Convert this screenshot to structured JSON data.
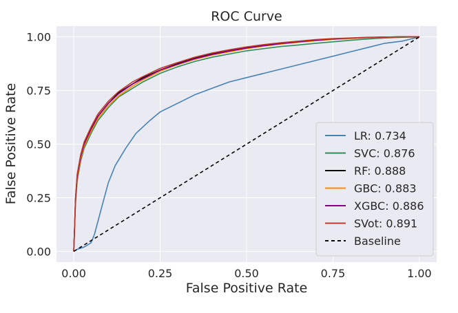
{
  "chart_data": {
    "type": "line",
    "title": "ROC Curve",
    "xlabel": "False Positive Rate",
    "ylabel": "False Positive Rate",
    "xlim": [
      -0.05,
      1.05
    ],
    "ylim": [
      -0.05,
      1.05
    ],
    "xticks": [
      0.0,
      0.25,
      0.5,
      0.75,
      1.0
    ],
    "xtick_labels": [
      "0.00",
      "0.25",
      "0.50",
      "0.75",
      "1.00"
    ],
    "yticks": [
      0.0,
      0.25,
      0.5,
      0.75,
      1.0
    ],
    "ytick_labels": [
      "0.00",
      "0.25",
      "0.50",
      "0.75",
      "1.00"
    ],
    "grid": true,
    "legend_position": "lower-right",
    "series": [
      {
        "name": "LR: 0.734",
        "color": "#4682b4",
        "dash": "solid",
        "x": [
          0,
          0.01,
          0.03,
          0.05,
          0.06,
          0.08,
          0.1,
          0.12,
          0.15,
          0.18,
          0.22,
          0.25,
          0.3,
          0.35,
          0.4,
          0.45,
          0.5,
          0.55,
          0.6,
          0.65,
          0.7,
          0.75,
          0.8,
          0.85,
          0.9,
          0.95,
          1.0
        ],
        "y": [
          0,
          0.01,
          0.02,
          0.04,
          0.08,
          0.2,
          0.32,
          0.4,
          0.48,
          0.55,
          0.61,
          0.65,
          0.69,
          0.73,
          0.76,
          0.79,
          0.81,
          0.83,
          0.85,
          0.87,
          0.89,
          0.91,
          0.93,
          0.95,
          0.97,
          0.98,
          1.0
        ]
      },
      {
        "name": "SVC: 0.876",
        "color": "#2e8b57",
        "dash": "solid",
        "x": [
          0,
          0.005,
          0.01,
          0.02,
          0.03,
          0.05,
          0.07,
          0.1,
          0.13,
          0.17,
          0.2,
          0.25,
          0.3,
          0.35,
          0.4,
          0.45,
          0.5,
          0.55,
          0.6,
          0.65,
          0.7,
          0.75,
          0.8,
          0.85,
          0.9,
          0.95,
          1.0
        ],
        "y": [
          0,
          0.22,
          0.33,
          0.42,
          0.48,
          0.55,
          0.61,
          0.67,
          0.72,
          0.76,
          0.79,
          0.83,
          0.86,
          0.885,
          0.905,
          0.92,
          0.935,
          0.945,
          0.955,
          0.962,
          0.97,
          0.977,
          0.984,
          0.99,
          0.995,
          0.998,
          1.0
        ]
      },
      {
        "name": "RF: 0.888",
        "color": "#000000",
        "dash": "solid",
        "x": [
          0,
          0.005,
          0.01,
          0.02,
          0.03,
          0.05,
          0.07,
          0.1,
          0.13,
          0.17,
          0.2,
          0.25,
          0.3,
          0.35,
          0.4,
          0.45,
          0.5,
          0.55,
          0.6,
          0.65,
          0.7,
          0.75,
          0.8,
          0.85,
          0.9,
          0.95,
          1.0
        ],
        "y": [
          0,
          0.24,
          0.35,
          0.44,
          0.5,
          0.57,
          0.63,
          0.69,
          0.74,
          0.78,
          0.81,
          0.845,
          0.875,
          0.9,
          0.92,
          0.935,
          0.95,
          0.96,
          0.97,
          0.977,
          0.984,
          0.99,
          0.994,
          0.997,
          0.999,
          1.0,
          1.0
        ]
      },
      {
        "name": "GBC: 0.883",
        "color": "#ff8c00",
        "dash": "solid",
        "x": [
          0,
          0.005,
          0.01,
          0.02,
          0.03,
          0.05,
          0.07,
          0.1,
          0.13,
          0.17,
          0.2,
          0.25,
          0.3,
          0.35,
          0.4,
          0.45,
          0.5,
          0.55,
          0.6,
          0.65,
          0.7,
          0.75,
          0.8,
          0.85,
          0.9,
          0.95,
          1.0
        ],
        "y": [
          0,
          0.23,
          0.34,
          0.43,
          0.49,
          0.56,
          0.62,
          0.68,
          0.725,
          0.77,
          0.8,
          0.84,
          0.87,
          0.895,
          0.915,
          0.93,
          0.945,
          0.957,
          0.967,
          0.975,
          0.982,
          0.988,
          0.992,
          0.996,
          0.998,
          1.0,
          1.0
        ]
      },
      {
        "name": "XGBC: 0.886",
        "color": "#800080",
        "dash": "solid",
        "x": [
          0,
          0.005,
          0.01,
          0.02,
          0.03,
          0.05,
          0.07,
          0.1,
          0.13,
          0.17,
          0.2,
          0.25,
          0.3,
          0.35,
          0.4,
          0.45,
          0.5,
          0.55,
          0.6,
          0.65,
          0.7,
          0.75,
          0.8,
          0.85,
          0.9,
          0.95,
          1.0
        ],
        "y": [
          0,
          0.24,
          0.35,
          0.44,
          0.5,
          0.57,
          0.63,
          0.69,
          0.735,
          0.78,
          0.805,
          0.845,
          0.872,
          0.898,
          0.918,
          0.934,
          0.948,
          0.959,
          0.969,
          0.977,
          0.984,
          0.99,
          0.994,
          0.997,
          0.999,
          1.0,
          1.0
        ]
      },
      {
        "name": "SVot: 0.891",
        "color": "#c0392b",
        "dash": "solid",
        "x": [
          0,
          0.005,
          0.01,
          0.02,
          0.03,
          0.05,
          0.07,
          0.1,
          0.13,
          0.17,
          0.2,
          0.25,
          0.3,
          0.35,
          0.4,
          0.45,
          0.5,
          0.55,
          0.6,
          0.65,
          0.7,
          0.75,
          0.8,
          0.85,
          0.9,
          0.95,
          1.0
        ],
        "y": [
          0,
          0.25,
          0.36,
          0.45,
          0.51,
          0.58,
          0.64,
          0.7,
          0.745,
          0.79,
          0.815,
          0.853,
          0.88,
          0.905,
          0.925,
          0.94,
          0.953,
          0.964,
          0.973,
          0.98,
          0.987,
          0.992,
          0.995,
          0.998,
          0.999,
          1.0,
          1.0
        ]
      },
      {
        "name": "Baseline",
        "color": "#000000",
        "dash": "dashed",
        "x": [
          0,
          1
        ],
        "y": [
          0,
          1
        ]
      }
    ]
  }
}
